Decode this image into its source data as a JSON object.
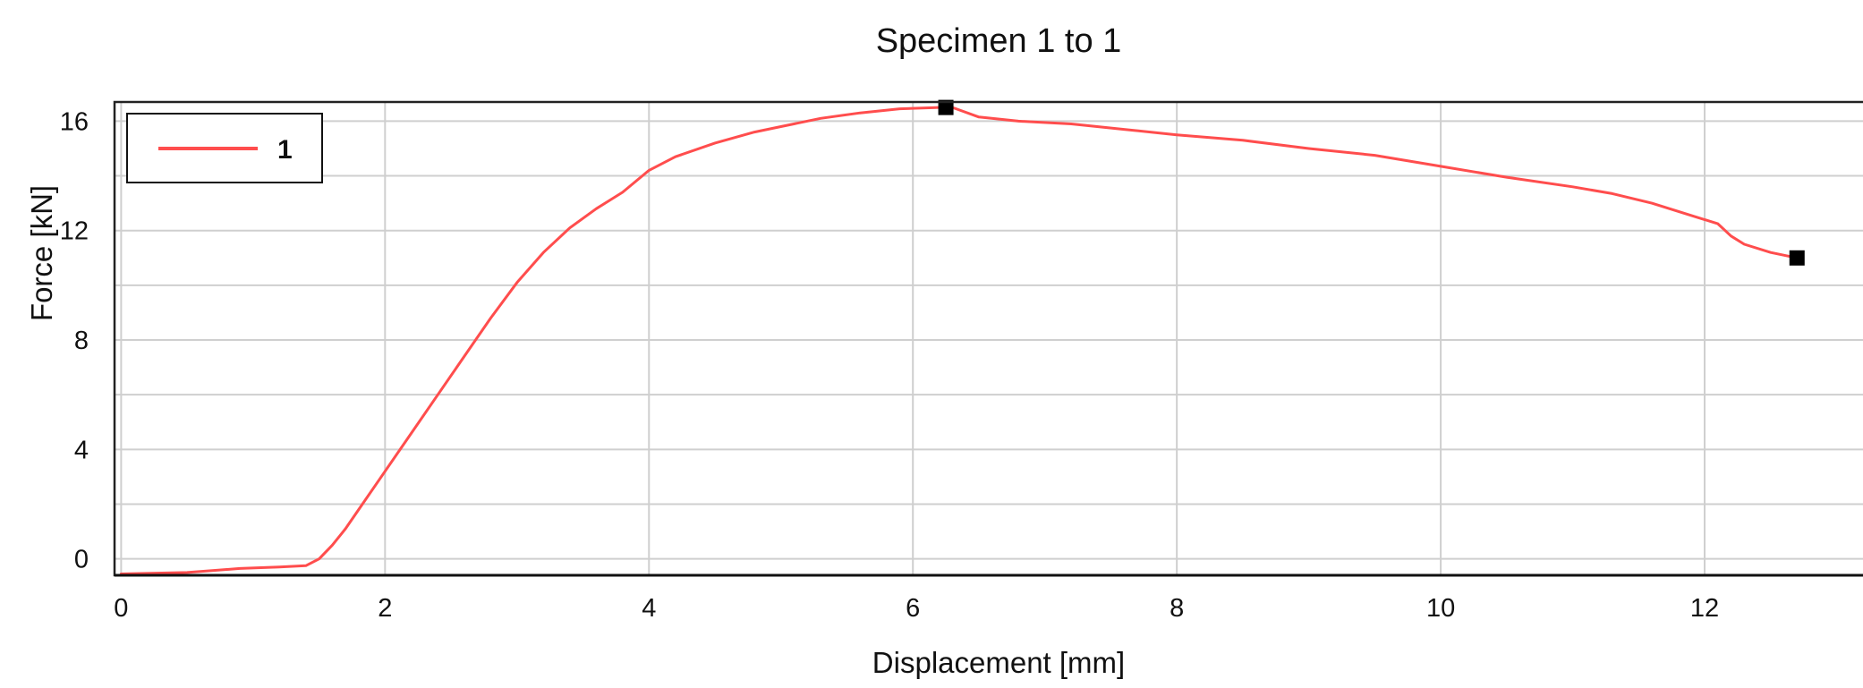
{
  "chart_data": {
    "type": "line",
    "title": "Specimen 1 to 1",
    "xlabel": "Displacement [mm]",
    "ylabel": "Force [kN]",
    "xlim": [
      -0.05,
      13.2
    ],
    "ylim": [
      -0.6,
      16.7
    ],
    "x_ticks": [
      0,
      2,
      4,
      6,
      8,
      10,
      12
    ],
    "x_tick_labels": [
      "0",
      "2",
      "4",
      "6",
      "8",
      "10",
      "12"
    ],
    "y_ticks": [
      0,
      4,
      8,
      12,
      16
    ],
    "y_tick_labels": [
      "0",
      "4",
      "8",
      "12",
      "16"
    ],
    "y_gridlines": [
      0,
      2,
      4,
      6,
      8,
      10,
      12,
      14,
      16
    ],
    "grid": true,
    "legend_position": "top-left",
    "series": [
      {
        "name": "1",
        "color": "#ff4d4d",
        "x": [
          0,
          0.5,
          0.9,
          1.2,
          1.4,
          1.5,
          1.6,
          1.7,
          1.8,
          2.0,
          2.2,
          2.4,
          2.6,
          2.8,
          3.0,
          3.2,
          3.4,
          3.6,
          3.7,
          3.8,
          4.0,
          4.2,
          4.5,
          4.8,
          5.0,
          5.3,
          5.6,
          5.9,
          6.2,
          6.3,
          6.5,
          6.8,
          7.2,
          7.6,
          8.0,
          8.5,
          9.0,
          9.5,
          10.0,
          10.5,
          11.0,
          11.3,
          11.6,
          11.9,
          12.1,
          12.2,
          12.3,
          12.5,
          12.7
        ],
        "y": [
          -0.55,
          -0.5,
          -0.35,
          -0.3,
          -0.25,
          0.0,
          0.5,
          1.1,
          1.8,
          3.2,
          4.6,
          6.0,
          7.4,
          8.8,
          10.1,
          11.2,
          12.1,
          12.8,
          13.1,
          13.4,
          14.2,
          14.7,
          15.2,
          15.6,
          15.8,
          16.1,
          16.3,
          16.45,
          16.5,
          16.5,
          16.15,
          16.0,
          15.9,
          15.7,
          15.5,
          15.3,
          15.0,
          14.75,
          14.35,
          13.95,
          13.6,
          13.35,
          13.0,
          12.55,
          12.25,
          11.8,
          11.5,
          11.2,
          11.0
        ]
      }
    ],
    "markers": [
      {
        "x": 6.25,
        "y": 16.5,
        "shape": "square",
        "color": "#000000"
      },
      {
        "x": 12.7,
        "y": 11.0,
        "shape": "square",
        "color": "#000000"
      }
    ]
  }
}
